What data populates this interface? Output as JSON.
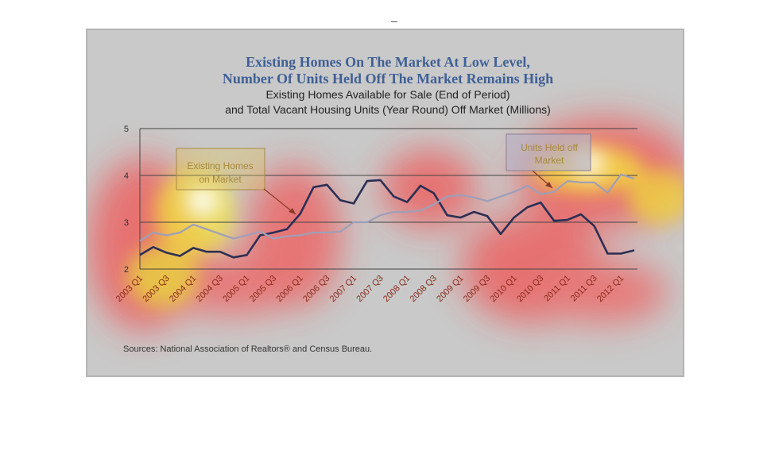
{
  "chart_data": {
    "type": "line",
    "title_lines": [
      "Existing Homes On The Market At Low Level,",
      "Number Of Units Held Off The Market Remains High"
    ],
    "subtitle_lines": [
      "Existing Homes Available for Sale (End of Period)",
      "and Total Vacant Housing Units (Year Round) Off Market (Millions)"
    ],
    "ylim": [
      2,
      5
    ],
    "yticks": [
      2,
      3,
      4,
      5
    ],
    "grid": true,
    "x": [
      "2003 Q1",
      "2003 Q2",
      "2003 Q3",
      "2003 Q4",
      "2004 Q1",
      "2004 Q2",
      "2004 Q3",
      "2004 Q4",
      "2005 Q1",
      "2005 Q2",
      "2005 Q3",
      "2005 Q4",
      "2006 Q1",
      "2006 Q2",
      "2006 Q3",
      "2006 Q4",
      "2007 Q1",
      "2007 Q2",
      "2007 Q3",
      "2007 Q4",
      "2008 Q1",
      "2008 Q2",
      "2008 Q3",
      "2008 Q4",
      "2009 Q1",
      "2009 Q2",
      "2009 Q3",
      "2009 Q4",
      "2010 Q1",
      "2010 Q2",
      "2010 Q3",
      "2010 Q4",
      "2011 Q1",
      "2011 Q2",
      "2011 Q3",
      "2011 Q4",
      "2012 Q1",
      "2012 Q2"
    ],
    "xtick_labels": [
      "2003 Q1",
      "2003 Q3",
      "2004 Q1",
      "2004 Q3",
      "2005 Q1",
      "2005 Q3",
      "2006 Q1",
      "2006 Q3",
      "2007 Q1",
      "2007 Q3",
      "2008 Q1",
      "2008 Q3",
      "2009 Q1",
      "2009 Q3",
      "2010 Q1",
      "2010 Q3",
      "2011 Q1",
      "2011 Q3",
      "2012 Q1"
    ],
    "series": [
      {
        "name": "Existing Homes on Market",
        "color": "#2b2f55",
        "values": [
          2.3,
          2.47,
          2.35,
          2.28,
          2.45,
          2.37,
          2.37,
          2.25,
          2.3,
          2.72,
          2.78,
          2.85,
          3.18,
          3.75,
          3.8,
          3.47,
          3.4,
          3.88,
          3.9,
          3.55,
          3.43,
          3.78,
          3.62,
          3.15,
          3.1,
          3.22,
          3.13,
          2.75,
          3.1,
          3.32,
          3.42,
          3.03,
          3.05,
          3.17,
          2.92,
          2.33,
          2.33,
          2.4
        ]
      },
      {
        "name": "Units Held off Market",
        "color": "#9d9fb9",
        "values": [
          2.6,
          2.78,
          2.72,
          2.78,
          2.95,
          2.85,
          2.75,
          2.65,
          2.72,
          2.8,
          2.65,
          2.7,
          2.72,
          2.78,
          2.78,
          2.8,
          3.0,
          3.0,
          3.15,
          3.22,
          3.22,
          3.25,
          3.38,
          3.55,
          3.58,
          3.53,
          3.45,
          3.55,
          3.65,
          3.78,
          3.6,
          3.65,
          3.88,
          3.85,
          3.85,
          3.63,
          4.02,
          3.93
        ]
      }
    ],
    "annotations": [
      {
        "text": "Existing Homes on Market",
        "series": "Existing Homes on Market"
      },
      {
        "text": "Units Held off Market",
        "series": "Units Held off Market"
      }
    ],
    "source": "Sources: National Association of Realtors® and Census Bureau.",
    "heatmap_overlay": true
  }
}
